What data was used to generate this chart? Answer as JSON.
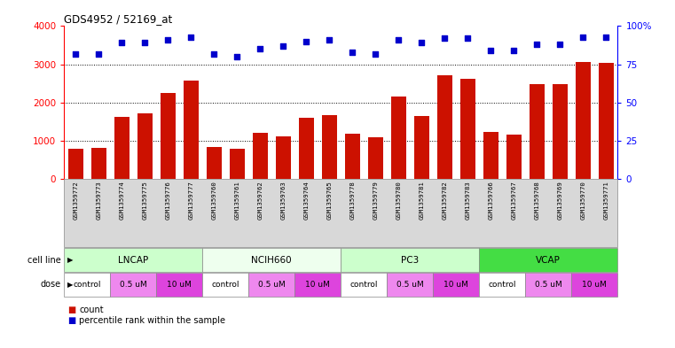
{
  "title": "GDS4952 / 52169_at",
  "samples": [
    "GSM1359772",
    "GSM1359773",
    "GSM1359774",
    "GSM1359775",
    "GSM1359776",
    "GSM1359777",
    "GSM1359760",
    "GSM1359761",
    "GSM1359762",
    "GSM1359763",
    "GSM1359764",
    "GSM1359765",
    "GSM1359778",
    "GSM1359779",
    "GSM1359780",
    "GSM1359781",
    "GSM1359782",
    "GSM1359783",
    "GSM1359766",
    "GSM1359767",
    "GSM1359768",
    "GSM1359769",
    "GSM1359770",
    "GSM1359771"
  ],
  "bar_values": [
    800,
    820,
    1620,
    1720,
    2250,
    2580,
    850,
    800,
    1220,
    1130,
    1600,
    1680,
    1180,
    1100,
    2160,
    1640,
    2720,
    2620,
    1240,
    1160,
    2480,
    2480,
    3060,
    3040
  ],
  "percentile_values": [
    82,
    82,
    89,
    89,
    91,
    93,
    82,
    80,
    85,
    87,
    90,
    91,
    83,
    82,
    91,
    89,
    92,
    92,
    84,
    84,
    88,
    88,
    93,
    93
  ],
  "cell_line_labels": [
    "LNCAP",
    "NCIH660",
    "PC3",
    "VCAP"
  ],
  "cell_line_starts": [
    0,
    6,
    12,
    18
  ],
  "cell_line_ends": [
    6,
    12,
    18,
    24
  ],
  "cell_line_colors": [
    "#ccffcc",
    "#eeffee",
    "#ccffcc",
    "#44dd44"
  ],
  "dose_labels": [
    "control",
    "0.5 uM",
    "10 uM",
    "control",
    "0.5 uM",
    "10 uM",
    "control",
    "0.5 uM",
    "10 uM",
    "control",
    "0.5 uM",
    "10 uM"
  ],
  "dose_starts": [
    0,
    2,
    4,
    6,
    8,
    10,
    12,
    14,
    16,
    18,
    20,
    22
  ],
  "dose_ends": [
    2,
    4,
    6,
    8,
    10,
    12,
    14,
    16,
    18,
    20,
    22,
    24
  ],
  "dose_colors": [
    "#ffffff",
    "#ee88ee",
    "#dd44dd",
    "#ffffff",
    "#ee88ee",
    "#dd44dd",
    "#ffffff",
    "#ee88ee",
    "#dd44dd",
    "#ffffff",
    "#ee88ee",
    "#dd44dd"
  ],
  "bar_color": "#cc1100",
  "dot_color": "#0000cc",
  "ylim_left": [
    0,
    4000
  ],
  "ylim_right": [
    0,
    100
  ],
  "yticks_left": [
    0,
    1000,
    2000,
    3000,
    4000
  ],
  "yticks_right": [
    0,
    25,
    50,
    75,
    100
  ],
  "background_color": "#ffffff"
}
